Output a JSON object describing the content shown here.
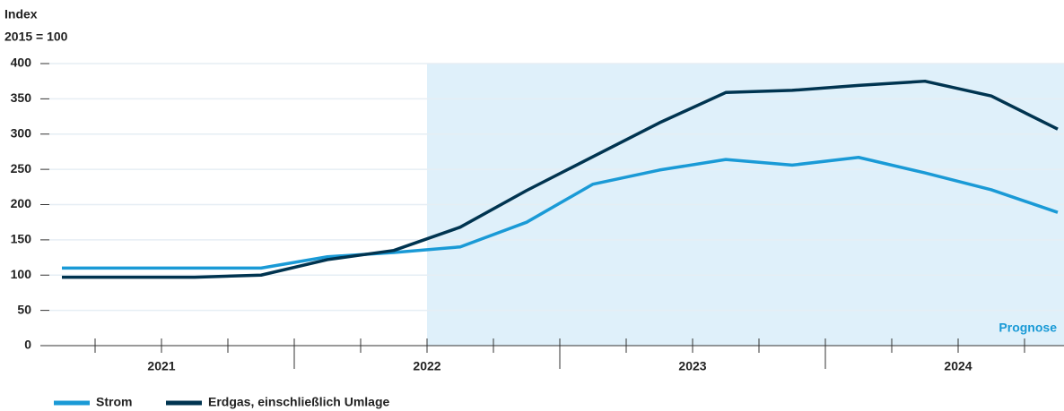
{
  "chart_data": {
    "type": "line",
    "y_label_lines": [
      "Index",
      "2015 = 100"
    ],
    "annotation": "Prognose",
    "year_labels": [
      "2021",
      "2022",
      "2023",
      "2024"
    ],
    "categories": [
      null,
      null,
      null,
      null,
      null,
      null,
      null,
      null,
      null,
      null,
      null,
      null,
      null,
      null,
      null,
      null
    ],
    "forecast_start_index": 6,
    "series": [
      {
        "name": "Strom",
        "color": "#1a9ad6",
        "values": [
          110,
          110,
          110,
          110,
          126,
          132,
          140,
          175,
          229,
          249,
          264,
          256,
          267,
          245,
          221,
          189
        ]
      },
      {
        "name": "Erdgas, einschließlich Umlage",
        "color": "#003450",
        "values": [
          97,
          97,
          97,
          100,
          122,
          135,
          168,
          220,
          268,
          316,
          359,
          362,
          369,
          375,
          354,
          307
        ]
      }
    ],
    "ylim": [
      0,
      400
    ],
    "yticks": [
      0,
      50,
      100,
      150,
      200,
      250,
      300,
      350,
      400
    ],
    "grid": true
  }
}
